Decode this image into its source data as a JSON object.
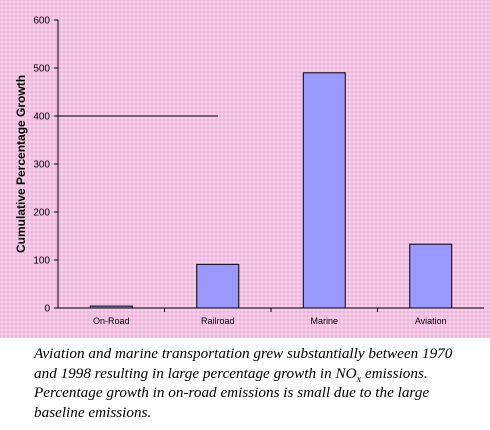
{
  "chart_data": {
    "type": "bar",
    "categories": [
      "On-Road",
      "Railroad",
      "Marine",
      "Aviation"
    ],
    "values": [
      4,
      91,
      490,
      133
    ],
    "title": "",
    "xlabel": "",
    "ylabel": "Cumulative Percentage Growth",
    "ylim": [
      0,
      600
    ],
    "yticks": [
      "0",
      "100",
      "200",
      "300",
      "400",
      "500",
      "600"
    ],
    "grid": false,
    "legend": "none",
    "bar_color": "#9999ff",
    "bar_edge_color": "#000000",
    "background_color": "#f4c3e4"
  },
  "caption": {
    "part1": "Aviation and marine transportation grew substantially between 1970 and 1998 resulting in large percentage growth in NO",
    "sub": "x",
    "part2": " emissions. Percentage growth in on-road emissions is small due to the large baseline emissions."
  }
}
